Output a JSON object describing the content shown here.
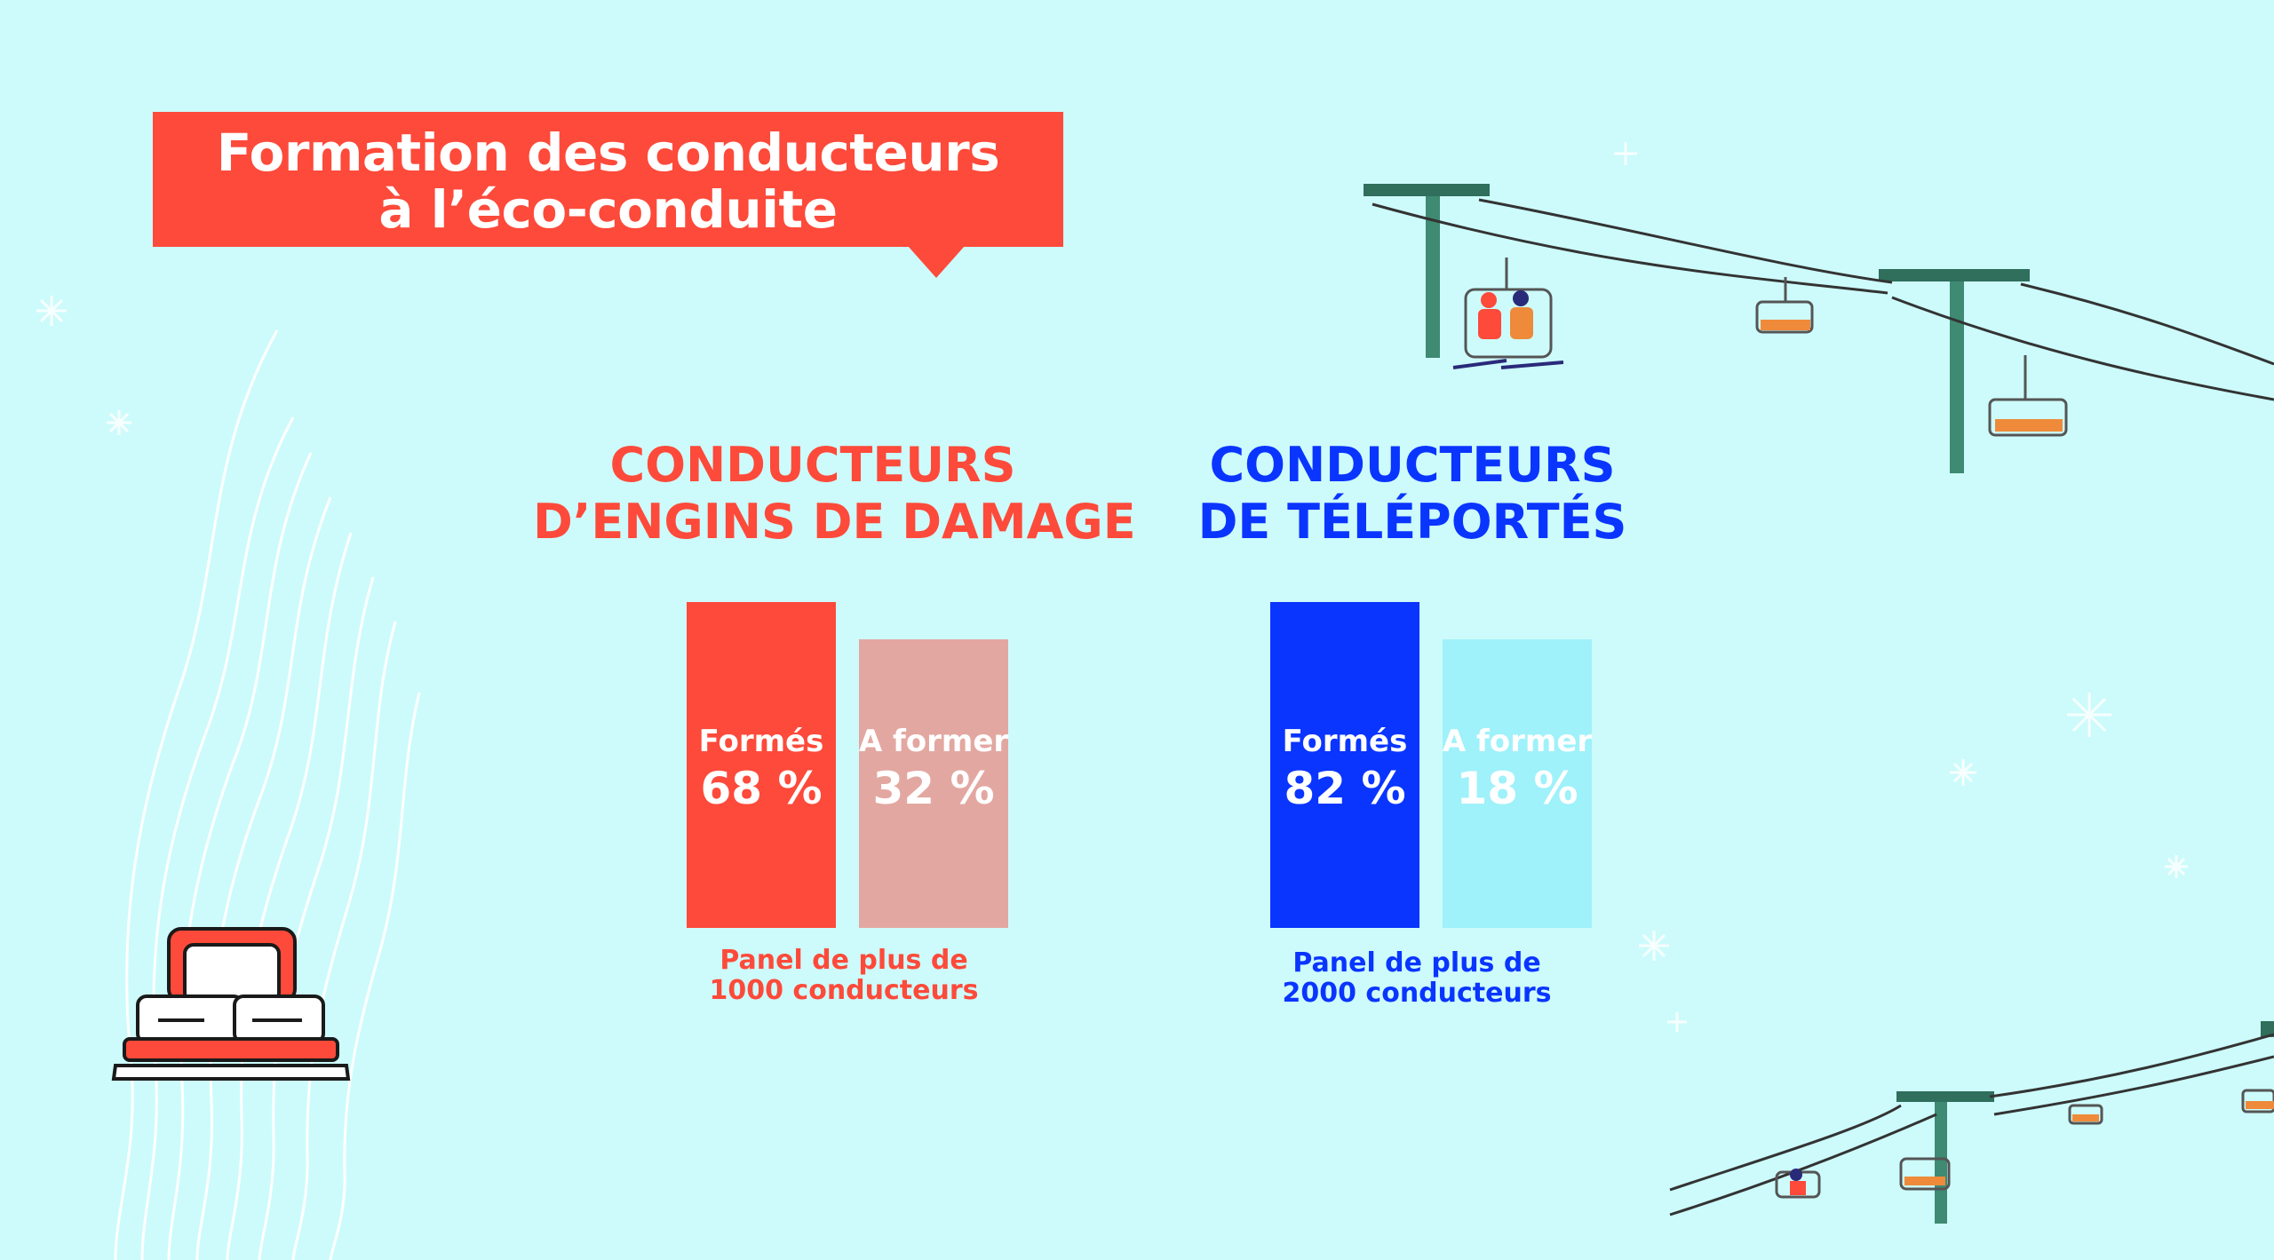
{
  "banner": {
    "line1": "Formation des conducteurs",
    "line2": "à l’éco-conduite"
  },
  "colors": {
    "background": "#cdfbfb",
    "accent_red": "#fd4a3a",
    "light_red": "#e3a7a1",
    "accent_blue": "#0a35ff",
    "light_blue": "#9ff1fa"
  },
  "icons": [
    "snow-groomer-icon",
    "chairlift-icon",
    "snowflake-icon"
  ],
  "chart_data": [
    {
      "type": "bar",
      "title_line1": "CONDUCTEURS",
      "title_line2": "D’ENGINS DE DAMAGE",
      "categories": [
        "Formés",
        "A former"
      ],
      "values": [
        68,
        32
      ],
      "value_labels": [
        "68 %",
        "32 %"
      ],
      "note_line1": "Panel de plus de",
      "note_line2": "1000 conducteurs",
      "colors": [
        "#fd4a3a",
        "#e3a7a1"
      ]
    },
    {
      "type": "bar",
      "title_line1": "CONDUCTEURS",
      "title_line2": "DE TÉLÉPORTÉS",
      "categories": [
        "Formés",
        "A former"
      ],
      "values": [
        82,
        18
      ],
      "value_labels": [
        "82 %",
        "18 %"
      ],
      "note_line1": "Panel de plus de",
      "note_line2": "2000 conducteurs",
      "colors": [
        "#0a35ff",
        "#9ff1fa"
      ]
    }
  ]
}
